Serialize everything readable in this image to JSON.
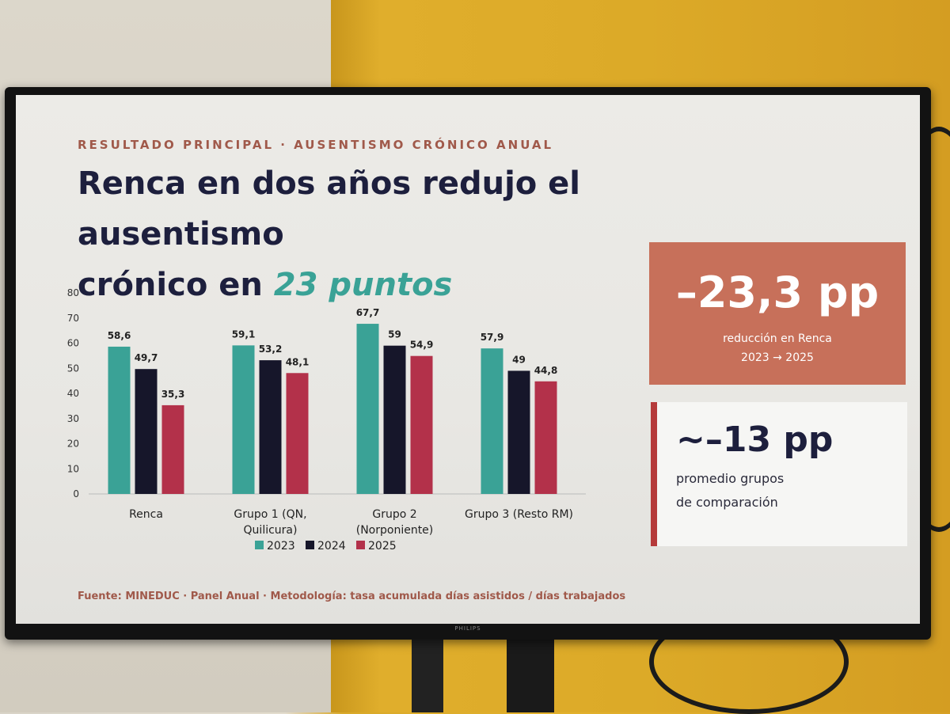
{
  "slide": {
    "eyebrow": "RESULTADO PRINCIPAL · AUSENTISMO CRÓNICO ANUAL",
    "title_line1": "Renca en dos años redujo el ausentismo",
    "title_line2_prefix": "crónico en ",
    "title_highlight": "23 puntos",
    "source": "Fuente: MINEDUC · Panel Anual · Metodología: tasa acumulada días asistidos / días trabajados",
    "brand": "PHILIPS"
  },
  "kpi_primary": {
    "value": "–23,3 pp",
    "caption": "reducción en Renca",
    "period": "2023 → 2025",
    "color": "#c7705a"
  },
  "kpi_secondary": {
    "value": "~–13 pp",
    "caption_line1": "promedio grupos",
    "caption_line2": "de comparación",
    "accent": "#b53a3a"
  },
  "chart_data": {
    "type": "bar",
    "categories": [
      [
        "Renca"
      ],
      [
        "Grupo 1 (QN,",
        "Quilicura)"
      ],
      [
        "Grupo 2",
        "(Norponiente)"
      ],
      [
        "Grupo 3 (Resto RM)"
      ]
    ],
    "series": [
      {
        "name": "2023",
        "color": "#3aa296",
        "values": [
          58.6,
          59.1,
          67.7,
          57.9
        ],
        "labels": [
          "58,6",
          "59,1",
          "67,7",
          "57,9"
        ]
      },
      {
        "name": "2024",
        "color": "#16162a",
        "values": [
          49.7,
          53.2,
          59,
          49
        ],
        "labels": [
          "49,7",
          "53,2",
          "59",
          "49"
        ]
      },
      {
        "name": "2025",
        "color": "#b3314a",
        "values": [
          35.3,
          48.1,
          54.9,
          44.8
        ],
        "labels": [
          "35,3",
          "48,1",
          "54,9",
          "44,8"
        ]
      }
    ],
    "ylim": [
      0,
      80
    ],
    "yticks": [
      0,
      10,
      20,
      30,
      40,
      50,
      60,
      70,
      80
    ],
    "grid": false,
    "legend": "bottom",
    "title": "",
    "xlabel": "",
    "ylabel": ""
  }
}
